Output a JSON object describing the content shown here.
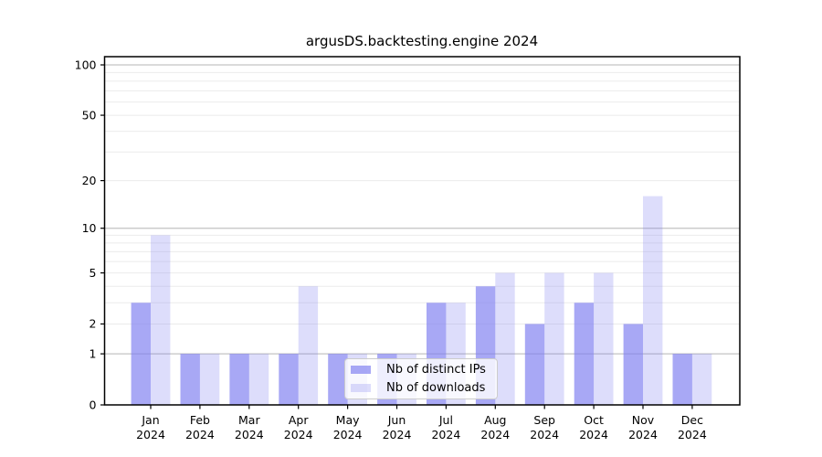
{
  "chart_data": {
    "type": "bar",
    "title": "argusDS.backtesting.engine 2024",
    "categories": [
      "Jan 2024",
      "Feb 2024",
      "Mar 2024",
      "Apr 2024",
      "May 2024",
      "Jun 2024",
      "Jul 2024",
      "Aug 2024",
      "Sep 2024",
      "Oct 2024",
      "Nov 2024",
      "Dec 2024"
    ],
    "series": [
      {
        "name": "Nb of distinct IPs",
        "color": "#7d7df0",
        "fill_opacity": 0.67,
        "values": [
          3,
          1,
          1,
          1,
          1,
          1,
          3,
          4,
          2,
          3,
          2,
          1
        ]
      },
      {
        "name": "Nb of downloads",
        "color": "#7d7df0",
        "fill_opacity": 0.26,
        "values": [
          9,
          1,
          1,
          4,
          1,
          1,
          3,
          5,
          5,
          5,
          16,
          1
        ]
      }
    ],
    "xlabel": "",
    "ylabel": "",
    "yscale": "log1p",
    "ylim": [
      0,
      112
    ],
    "yticks": [
      0,
      1,
      2,
      5,
      10,
      20,
      50,
      100
    ],
    "major_gridlines": [
      1,
      10,
      100
    ],
    "minor_gridlines": [
      2,
      3,
      4,
      5,
      6,
      7,
      8,
      9,
      20,
      30,
      40,
      50,
      60,
      70,
      80,
      90
    ],
    "grid": "horizontal, major and minor",
    "legend_position": "lower center",
    "colors": {
      "major_grid": "#c3c3c3",
      "minor_grid": "#ebebeb",
      "axis": "#000000",
      "tick_text": "#000000",
      "background": "#ffffff"
    }
  }
}
